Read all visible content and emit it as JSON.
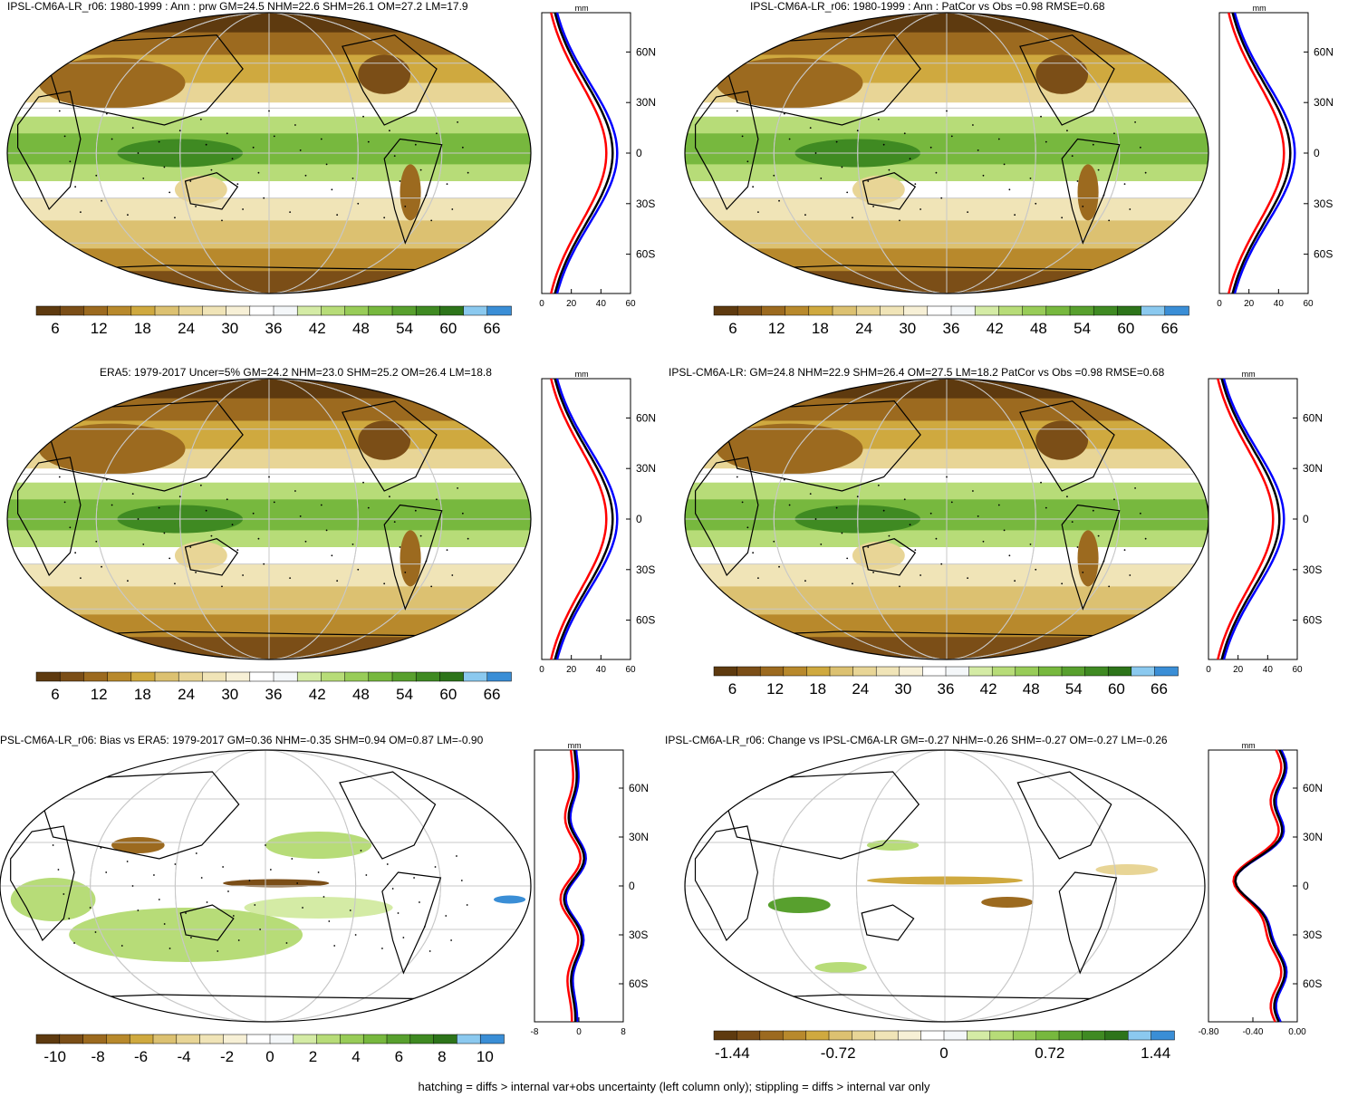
{
  "palette": {
    "precip": [
      "#5e3a0f",
      "#7b4e17",
      "#9c6a1f",
      "#b8892c",
      "#cfa93f",
      "#dcc171",
      "#e8d596",
      "#f0e4b7",
      "#f7f0d6",
      "#ffffff",
      "#f4f7f9",
      "#d4eba5",
      "#b7dc78",
      "#98cc58",
      "#77b83e",
      "#58a02e",
      "#3f8a22",
      "#2d741a",
      "#8bc9ef",
      "#3a8ed6"
    ],
    "ocean_base": "#f2e6c0",
    "land_line": "#000000",
    "profile_colors": {
      "model": "#000000",
      "obs": "#ff0000",
      "alt": "#0000ff"
    }
  },
  "panels": [
    {
      "title": "IPSL-CM6A-LR_r06: 1980-1999 : Ann : prw GM=24.5 NHM=22.6 SHM=26.1 OM=27.2 LM=17.9",
      "colorbar_ticks": [
        "6",
        "12",
        "18",
        "24",
        "30",
        "36",
        "42",
        "48",
        "54",
        "60",
        "66"
      ],
      "profile_unit": "mm",
      "profile_xticks": [
        "0",
        "20",
        "40",
        "60"
      ],
      "profile_yticks": [
        "60N",
        "30N",
        "0",
        "30S",
        "60S"
      ],
      "style": "mean"
    },
    {
      "title": "IPSL-CM6A-LR_r06: 1980-1999 : Ann : PatCor vs Obs =0.98 RMSE=0.68",
      "colorbar_ticks": [
        "6",
        "12",
        "18",
        "24",
        "30",
        "36",
        "42",
        "48",
        "54",
        "60",
        "66"
      ],
      "profile_unit": "mm",
      "profile_xticks": [
        "0",
        "20",
        "40",
        "60"
      ],
      "profile_yticks": [
        "60N",
        "30N",
        "0",
        "30S",
        "60S"
      ],
      "style": "mean"
    },
    {
      "title": "ERA5: 1979-2017 Uncer=5% GM=24.2 NHM=23.0 SHM=25.2 OM=26.4 LM=18.8",
      "colorbar_ticks": [
        "6",
        "12",
        "18",
        "24",
        "30",
        "36",
        "42",
        "48",
        "54",
        "60",
        "66"
      ],
      "profile_unit": "mm",
      "profile_xticks": [
        "0",
        "20",
        "40",
        "60"
      ],
      "profile_yticks": [
        "60N",
        "30N",
        "0",
        "30S",
        "60S"
      ],
      "style": "mean"
    },
    {
      "title": "IPSL-CM6A-LR: GM=24.8 NHM=22.9 SHM=26.4 OM=27.5 LM=18.2 PatCor vs Obs =0.98 RMSE=0.68",
      "colorbar_ticks": [
        "6",
        "12",
        "18",
        "24",
        "30",
        "36",
        "42",
        "48",
        "54",
        "60",
        "66"
      ],
      "profile_unit": "mm",
      "profile_xticks": [
        "0",
        "20",
        "40",
        "60"
      ],
      "profile_yticks": [
        "60N",
        "30N",
        "0",
        "30S",
        "60S"
      ],
      "style": "mean"
    },
    {
      "title": "PSL-CM6A-LR_r06: Bias vs ERA5: 1979-2017 GM=0.36 NHM=-0.35 SHM=0.94 OM=0.87 LM=-0.90",
      "colorbar_ticks": [
        "-10",
        "-8",
        "-6",
        "-4",
        "-2",
        "0",
        "2",
        "4",
        "6",
        "8",
        "10"
      ],
      "profile_unit": "mm",
      "profile_xticks": [
        "-8",
        "0",
        "8"
      ],
      "profile_yticks": [
        "60N",
        "30N",
        "0",
        "30S",
        "60S"
      ],
      "style": "bias"
    },
    {
      "title": "IPSL-CM6A-LR_r06: Change vs IPSL-CM6A-LR GM=-0.27 NHM=-0.26 SHM=-0.27 OM=-0.27 LM=-0.26",
      "colorbar_ticks": [
        "-1.44",
        "-0.72",
        "0",
        "0.72",
        "1.44"
      ],
      "profile_unit": "mm",
      "profile_xticks": [
        "-0.80",
        "-0.40",
        "0.00"
      ],
      "profile_yticks": [
        "60N",
        "30N",
        "0",
        "30S",
        "60S"
      ],
      "style": "change"
    }
  ],
  "caption": "hatching = diffs > internal var+obs uncertainty (left column only); stippling = diffs > internal var only"
}
